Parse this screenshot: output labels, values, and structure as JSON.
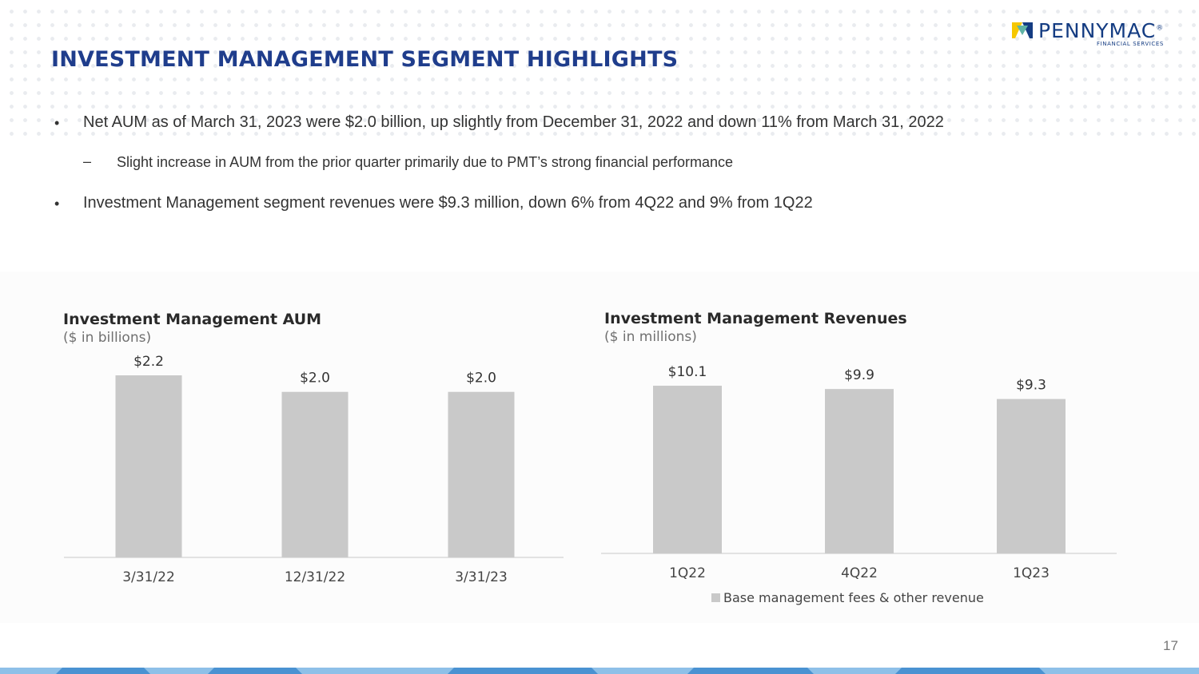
{
  "header": {
    "title": "INVESTMENT MANAGEMENT SEGMENT HIGHLIGHTS",
    "logo_name": "PENNYMAC",
    "logo_trademark": "®",
    "logo_subtitle": "FINANCIAL SERVICES"
  },
  "bullets": [
    {
      "marker": "•",
      "text": "Net AUM as of March 31, 2023 were $2.0 billion, up slightly from December 31, 2022 and down 11% from March 31, 2022"
    },
    {
      "marker": "–",
      "text": "Slight increase in AUM from the prior quarter primarily due to PMT’s strong financial performance"
    },
    {
      "marker": "•",
      "text": "Investment Management segment revenues were $9.3 million, down 6% from 4Q22 and 9% from 1Q22"
    }
  ],
  "page_number": "17",
  "colors": {
    "title": "#1f3d8c",
    "bar": "#c9c9c9",
    "logo_navy": "#143c82",
    "logo_yellow": "#f6c700",
    "logo_teal": "#5fb3a5",
    "footer_light": "#8ec0e8",
    "footer_mid": "#4a92d2"
  },
  "chart_data": [
    {
      "type": "bar",
      "title": "Investment Management AUM",
      "subtitle": "($ in billions)",
      "categories": [
        "3/31/22",
        "12/31/22",
        "3/31/23"
      ],
      "values": [
        2.2,
        2.0,
        2.0
      ],
      "data_labels": [
        "$2.2",
        "$2.0",
        "$2.0"
      ],
      "ylim": [
        0,
        2.2
      ],
      "grid": false
    },
    {
      "type": "bar",
      "title": "Investment Management Revenues",
      "subtitle": "($ in millions)",
      "categories": [
        "1Q22",
        "4Q22",
        "1Q23"
      ],
      "series": [
        {
          "name": "Base management fees & other revenue",
          "values": [
            10.1,
            9.9,
            9.3
          ]
        }
      ],
      "data_labels": [
        "$10.1",
        "$9.9",
        "$9.3"
      ],
      "legend": "Base management fees & other revenue",
      "legend_position": "bottom",
      "ylim": [
        0,
        10.1
      ],
      "grid": false
    }
  ]
}
